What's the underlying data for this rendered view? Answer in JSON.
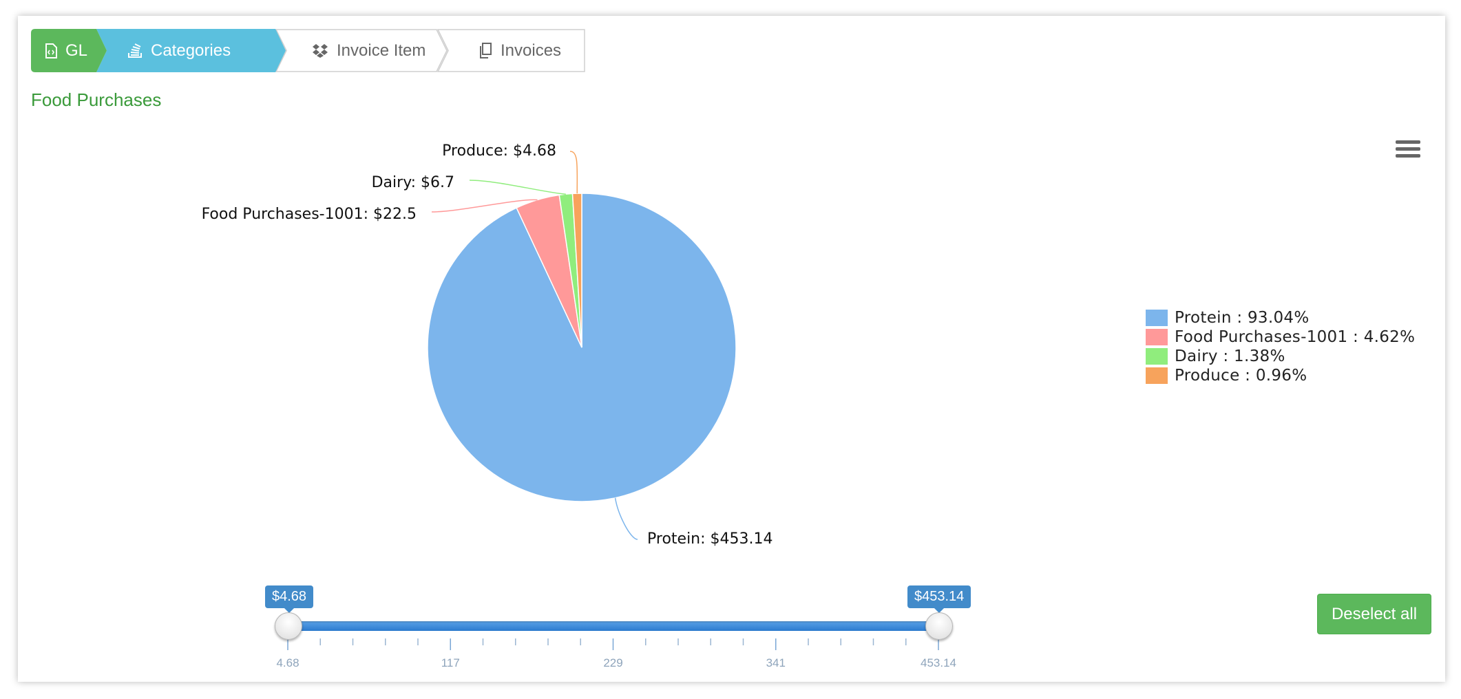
{
  "breadcrumb": [
    {
      "label": "GL",
      "icon": "file-code-icon",
      "bg": "#5cb85c"
    },
    {
      "label": "Categories",
      "icon": "stack-icon",
      "bg": "#5bc0de"
    },
    {
      "label": "Invoice Item",
      "icon": "dropbox-icon",
      "bg": "#ffffff"
    },
    {
      "label": "Invoices",
      "icon": "copy-icon",
      "bg": "#ffffff"
    }
  ],
  "chart_data": {
    "type": "pie",
    "title": "Food Purchases",
    "slices": [
      {
        "name": "Protein",
        "value": 453.14,
        "percent": 93.04,
        "color": "#7cb5ec",
        "data_label": "Protein: $453.14",
        "legend_label": "Protein : 93.04%"
      },
      {
        "name": "Food Purchases-1001",
        "value": 22.5,
        "percent": 4.62,
        "color": "#ff9999",
        "data_label": "Food Purchases-1001: $22.5",
        "legend_label": "Food Purchases-1001 : 4.62%"
      },
      {
        "name": "Dairy",
        "value": 6.7,
        "percent": 1.38,
        "color": "#90ed7d",
        "data_label": "Dairy: $6.7",
        "legend_label": "Dairy : 1.38%"
      },
      {
        "name": "Produce",
        "value": 4.68,
        "percent": 0.96,
        "color": "#f7a35c",
        "data_label": "Produce: $4.68",
        "legend_label": "Produce : 0.96%"
      }
    ],
    "legend_position": "right"
  },
  "range_slider": {
    "min": 4.68,
    "max": 453.14,
    "from_label": "$4.68",
    "to_label": "$453.14",
    "ticks": [
      "4.68",
      "117",
      "229",
      "341",
      "453.14"
    ],
    "color": "#428bca"
  },
  "deselect_label": "Deselect all",
  "menu_icon": "hamburger-menu-icon"
}
